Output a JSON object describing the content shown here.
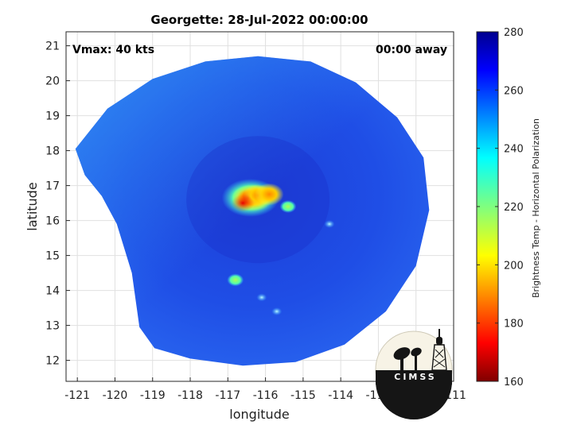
{
  "chart_data": {
    "type": "heatmap",
    "title": "Georgette: 28-Jul-2022 00:00:00",
    "xlabel": "longitude",
    "ylabel": "latitude",
    "xlim": [
      -121.3,
      -111
    ],
    "ylim": [
      11.4,
      21.4
    ],
    "x_ticks": [
      -121,
      -120,
      -119,
      -118,
      -117,
      -116,
      -115,
      -114,
      -113,
      -112,
      -111
    ],
    "y_ticks": [
      12,
      13,
      14,
      15,
      16,
      17,
      18,
      19,
      20,
      21
    ],
    "grid": true,
    "annotations": {
      "vmax": "Vmax: 40 kts",
      "away": "00:00 away"
    },
    "colorbar": {
      "label": "Brightness Temp - Horizontal Polarization",
      "range": [
        160,
        280
      ],
      "ticks": [
        160,
        180,
        200,
        220,
        240,
        260,
        280
      ],
      "colormap": "jet"
    },
    "swath": {
      "center_lon": -116.2,
      "center_lat": 16.6,
      "background_value": 262
    },
    "features": [
      {
        "lon": -116.45,
        "lat": 16.65,
        "value": 180
      },
      {
        "lon": -116.2,
        "lat": 16.72,
        "value": 190
      },
      {
        "lon": -116.6,
        "lat": 16.5,
        "value": 185
      },
      {
        "lon": -115.9,
        "lat": 16.75,
        "value": 200
      },
      {
        "lon": -115.4,
        "lat": 16.4,
        "value": 240
      },
      {
        "lon": -114.3,
        "lat": 15.9,
        "value": 245
      },
      {
        "lon": -116.8,
        "lat": 14.3,
        "value": 240
      },
      {
        "lon": -115.7,
        "lat": 13.4,
        "value": 245
      },
      {
        "lon": -116.1,
        "lat": 13.8,
        "value": 248
      }
    ],
    "logo": "CIMSS"
  },
  "colors": {
    "axis": "#262626",
    "grid": "#e0e0e0",
    "background_field": "#1f4fe8",
    "logo_fill": "#111111"
  }
}
